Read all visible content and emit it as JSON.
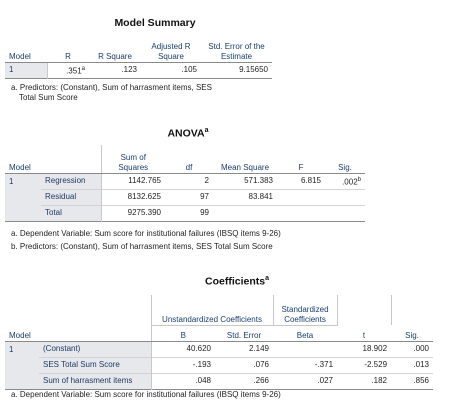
{
  "model_summary": {
    "title": "Model Summary",
    "headers": [
      "Model",
      "R",
      "R Square",
      "Adjusted R Square",
      "Std. Error of the Estimate"
    ],
    "rows": [
      {
        "model": "1",
        "r": ".351",
        "r_sup": "a",
        "r_square": ".123",
        "adj_r_square": ".105",
        "std_error": "9.15650"
      }
    ],
    "footnotes": [
      "a. Predictors: (Constant), Sum of harrasment items, SES",
      "Total Sum Score"
    ]
  },
  "anova": {
    "title": "ANOVA",
    "title_sup": "a",
    "headers": [
      "Model",
      "",
      "Sum of Squares",
      "df",
      "Mean Square",
      "F",
      "Sig."
    ],
    "model": "1",
    "rows": [
      {
        "label": "Regression",
        "ss": "1142.765",
        "df": "2",
        "ms": "571.383",
        "f": "6.815",
        "sig": ".002",
        "sig_sup": "b"
      },
      {
        "label": "Residual",
        "ss": "8132.625",
        "df": "97",
        "ms": "83.841",
        "f": "",
        "sig": ""
      },
      {
        "label": "Total",
        "ss": "9275.390",
        "df": "99",
        "ms": "",
        "f": "",
        "sig": ""
      }
    ],
    "footnotes": [
      "a. Dependent Variable: Sum score for institutional failures (IBSQ items 9-26)",
      "b. Predictors: (Constant), Sum of harrasment items, SES Total Sum Score"
    ]
  },
  "coefficients": {
    "title": "Coefficients",
    "title_sup": "a",
    "group_headers": {
      "unstd": "Unstandardized Coefficients",
      "std": "Standardized Coefficients"
    },
    "headers": [
      "Model",
      "",
      "B",
      "Std. Error",
      "Beta",
      "t",
      "Sig."
    ],
    "model": "1",
    "rows": [
      {
        "label": "(Constant)",
        "b": "40.620",
        "se": "2.149",
        "beta": "",
        "t": "18.902",
        "sig": ".000"
      },
      {
        "label": "SES Total Sum Score",
        "b": "-.193",
        "se": ".076",
        "beta": "-.371",
        "t": "-2.529",
        "sig": ".013"
      },
      {
        "label": "Sum of harrasment items",
        "b": ".048",
        "se": ".266",
        "beta": ".027",
        "t": ".182",
        "sig": ".856"
      }
    ],
    "footnotes": [
      "a. Dependent Variable: Sum score for institutional failures (IBSQ items 9-26)"
    ]
  }
}
